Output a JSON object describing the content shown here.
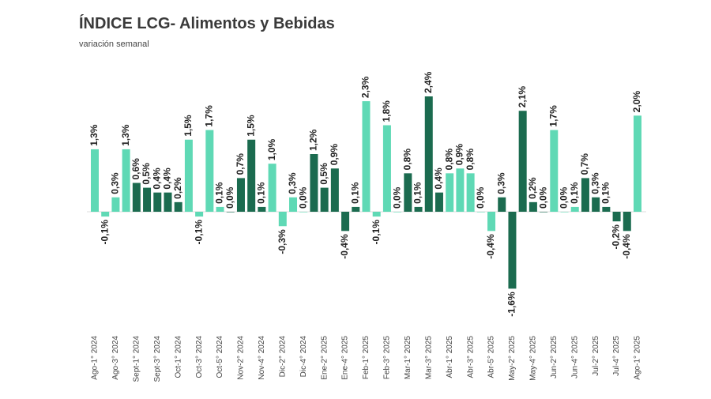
{
  "chart_data": {
    "type": "bar",
    "title": "ÍNDICE LCG- Alimentos y Bebidas",
    "subtitle": "variación semanal",
    "categories": [
      "Ago-1° 2024",
      null,
      "Ago-3° 2024",
      null,
      "Sept-1° 2024",
      null,
      "Sept-3° 2024",
      null,
      "Oct-1° 2024",
      null,
      "Oct-3° 2024",
      null,
      "Oct-5° 2024",
      null,
      "Nov-2° 2024",
      null,
      "Nov-4° 2024",
      null,
      "Dic-2° 2024",
      null,
      "Dic-4° 2024",
      null,
      "Ene-2° 2025",
      null,
      "Ene-4° 2025",
      null,
      "Feb-1° 2025",
      null,
      "Feb-3° 2025",
      null,
      "Mar-1° 2025",
      null,
      "Mar-3° 2025",
      null,
      "Abr-1° 2025",
      null,
      "Abr-3° 2025",
      null,
      "Abr-5° 2025",
      null,
      "May-2° 2025",
      null,
      "May-4° 2025",
      null,
      "Jun-2° 2025",
      null,
      "Jun-4° 2025",
      null,
      "Jul-2° 2025",
      null,
      "Jul-4° 2025",
      null,
      "Ago-1° 2025"
    ],
    "values": [
      1.3,
      -0.1,
      0.3,
      1.3,
      0.6,
      0.5,
      0.4,
      0.4,
      0.2,
      1.5,
      -0.1,
      1.7,
      0.1,
      0.0,
      0.7,
      1.5,
      0.1,
      1.0,
      -0.3,
      0.3,
      0.0,
      1.2,
      0.5,
      0.9,
      -0.4,
      0.1,
      2.3,
      -0.1,
      1.8,
      0.0,
      0.8,
      0.1,
      2.4,
      0.4,
      0.8,
      0.9,
      0.8,
      0.0,
      -0.4,
      0.3,
      -1.6,
      2.1,
      0.2,
      0.0,
      1.7,
      0.0,
      0.1,
      0.7,
      0.3,
      0.1,
      -0.2,
      -0.4,
      2.0
    ],
    "value_labels": [
      "1,3%",
      "-0,1%",
      "0,3%",
      "1,3%",
      "0,6%",
      "0,5%",
      "0,4%",
      "0,4%",
      "0,2%",
      "1,5%",
      "-0,1%",
      "1,7%",
      "0,1%",
      "0,0%",
      "0,7%",
      "1,5%",
      "0,1%",
      "1,0%",
      "-0,3%",
      "0,3%",
      "0,0%",
      "1,2%",
      "0,5%",
      "0,9%",
      "-0,4%",
      "0,1%",
      "2,3%",
      "-0,1%",
      "1,8%",
      "0,0%",
      "0,8%",
      "0,1%",
      "2,4%",
      "0,4%",
      "0,8%",
      "0,9%",
      "0,8%",
      "0,0%",
      "-0,4%",
      "0,3%",
      "-1,6%",
      "2,1%",
      "0,2%",
      "0,0%",
      "1,7%",
      "0,0%",
      "0,1%",
      "0,7%",
      "0,3%",
      "0,1%",
      "-0,2%",
      "-0,4%",
      "2,0%"
    ],
    "colors": [
      "#5fd9b5",
      "#5fd9b5",
      "#5fd9b5",
      "#5fd9b5",
      "#1b6b4f",
      "#1b6b4f",
      "#1b6b4f",
      "#1b6b4f",
      "#1b6b4f",
      "#5fd9b5",
      "#5fd9b5",
      "#5fd9b5",
      "#5fd9b5",
      "#1b6b4f",
      "#1b6b4f",
      "#1b6b4f",
      "#1b6b4f",
      "#5fd9b5",
      "#5fd9b5",
      "#5fd9b5",
      "#5fd9b5",
      "#1b6b4f",
      "#1b6b4f",
      "#1b6b4f",
      "#1b6b4f",
      "#1b6b4f",
      "#5fd9b5",
      "#5fd9b5",
      "#5fd9b5",
      "#5fd9b5",
      "#1b6b4f",
      "#1b6b4f",
      "#1b6b4f",
      "#1b6b4f",
      "#5fd9b5",
      "#5fd9b5",
      "#5fd9b5",
      "#5fd9b5",
      "#5fd9b5",
      "#1b6b4f",
      "#1b6b4f",
      "#1b6b4f",
      "#1b6b4f",
      "#1b6b4f",
      "#5fd9b5",
      "#5fd9b5",
      "#5fd9b5",
      "#1b6b4f",
      "#1b6b4f",
      "#1b6b4f",
      "#1b6b4f",
      "#1b6b4f",
      "#5fd9b5"
    ]
  }
}
